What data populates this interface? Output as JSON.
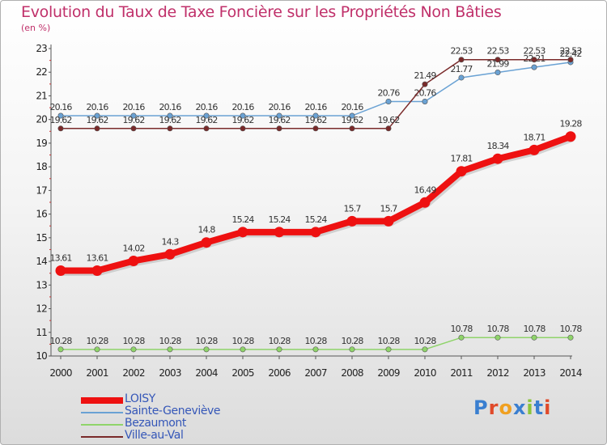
{
  "title": "Evolution du Taux de Taxe Foncière sur les Propriétés Non Bâties",
  "subtitle": "(en %)",
  "logo_text": "Proxiti",
  "chart_data": {
    "type": "line",
    "title": "Evolution du Taux de Taxe Foncière sur les Propriétés Non Bâties",
    "ylabel": "(en %)",
    "xlabel": "",
    "x": [
      "2000",
      "2001",
      "2002",
      "2003",
      "2004",
      "2005",
      "2006",
      "2007",
      "2008",
      "2009",
      "2010",
      "2011",
      "2012",
      "2013",
      "2014"
    ],
    "ylim": [
      10,
      23
    ],
    "yticks": [
      "10",
      "11",
      "12",
      "13",
      "14",
      "15",
      "16",
      "17",
      "18",
      "19",
      "20",
      "21",
      "22",
      "23"
    ],
    "grid": false,
    "legend_placement": "bottom-left",
    "series": [
      {
        "name": "LOISY",
        "color": "#ee1111",
        "values": [
          13.61,
          13.61,
          14.02,
          14.3,
          14.8,
          15.24,
          15.24,
          15.24,
          15.7,
          15.7,
          16.49,
          17.81,
          18.34,
          18.71,
          19.28
        ],
        "labels": [
          "13.61",
          "13.61",
          "14.02",
          "14.3",
          "14.8",
          "15.24",
          "15.24",
          "15.24",
          "15.7",
          "15.7",
          "16.49",
          "17.81",
          "18.34",
          "18.71",
          "19.28"
        ]
      },
      {
        "name": "Sainte-Geneviève",
        "color": "#6aa2d4",
        "values": [
          20.16,
          20.16,
          20.16,
          20.16,
          20.16,
          20.16,
          20.16,
          20.16,
          20.16,
          20.76,
          20.76,
          21.77,
          21.99,
          22.21,
          22.42
        ],
        "labels": [
          "20.16",
          "20.16",
          "20.16",
          "20.16",
          "20.16",
          "20.16",
          "20.16",
          "20.16",
          "20.16",
          "20.76",
          "20.76",
          "21.77",
          "21.99",
          "22.21",
          "22.42"
        ]
      },
      {
        "name": "Bezaumont",
        "color": "#8fd46a",
        "values": [
          10.28,
          10.28,
          10.28,
          10.28,
          10.28,
          10.28,
          10.28,
          10.28,
          10.28,
          10.28,
          10.28,
          10.78,
          10.78,
          10.78,
          10.78
        ],
        "labels": [
          "10.28",
          "10.28",
          "10.28",
          "10.28",
          "10.28",
          "10.28",
          "10.28",
          "10.28",
          "10.28",
          "10.28",
          "10.28",
          "10.78",
          "10.78",
          "10.78",
          "10.78"
        ]
      },
      {
        "name": "Ville-au-Val",
        "color": "#7a2a2a",
        "values": [
          19.62,
          19.62,
          19.62,
          19.62,
          19.62,
          19.62,
          19.62,
          19.62,
          19.62,
          19.62,
          21.49,
          22.53,
          22.53,
          22.53,
          22.53
        ],
        "labels": [
          "19.62",
          "19.62",
          "19.62",
          "19.62",
          "19.62",
          "19.62",
          "19.62",
          "19.62",
          "19.62",
          "19.62",
          "21.49",
          "22.53",
          "22.53",
          "22.53",
          "22.53"
        ]
      }
    ]
  }
}
